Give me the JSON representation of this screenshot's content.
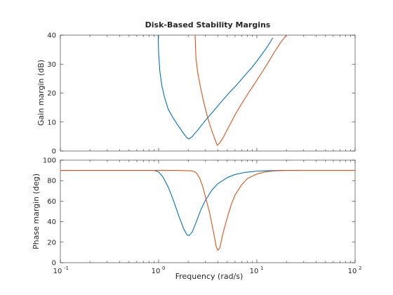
{
  "chart_data": [
    {
      "type": "line",
      "title": "Disk-Based Stability Margins",
      "xlabel": "",
      "ylabel": "Gain margin (dB)",
      "x_scale": "log",
      "xlim": [
        0.1,
        100
      ],
      "ylim": [
        0,
        40
      ],
      "yticks": [
        "0",
        "10",
        "20",
        "30",
        "40"
      ],
      "grid": false,
      "series": [
        {
          "color": "#0072BD",
          "x": [
            0.99,
            1.0,
            1.03,
            1.08,
            1.15,
            1.25,
            1.4,
            1.6,
            1.8,
            1.95,
            2.05,
            2.2,
            2.5,
            3.0,
            3.6,
            4.3,
            5.2,
            6.3,
            7.5,
            9.0,
            10.5,
            12.5,
            14.5
          ],
          "y": [
            40,
            34,
            27.5,
            22.5,
            18.5,
            14.5,
            11.5,
            8.5,
            6.0,
            4.5,
            4.2,
            5.0,
            7.2,
            10.6,
            13.7,
            16.8,
            20.0,
            23.0,
            26.0,
            29.0,
            32.0,
            35.5,
            39.0
          ]
        },
        {
          "color": "#D95319",
          "x": [
            2.35,
            2.4,
            2.5,
            2.65,
            2.85,
            3.1,
            3.4,
            3.7,
            3.95,
            4.2,
            4.6,
            5.2,
            6.0,
            7.0,
            8.2,
            9.6,
            11.2,
            13.0,
            15.0,
            17.5,
            20.0
          ],
          "y": [
            40,
            32,
            27.0,
            22.5,
            17.5,
            12.5,
            8.0,
            4.5,
            2.0,
            2.8,
            5.0,
            8.5,
            12.5,
            16.3,
            20.0,
            23.5,
            27.0,
            30.5,
            34.0,
            37.5,
            40.0
          ]
        }
      ]
    },
    {
      "type": "line",
      "title": "",
      "xlabel": "Frequency (rad/s)",
      "ylabel": "Phase margin (deg)",
      "x_scale": "log",
      "xlim": [
        0.1,
        100
      ],
      "ylim": [
        0,
        100
      ],
      "yticks": [
        "0",
        "20",
        "40",
        "60",
        "80",
        "100"
      ],
      "xticks": [
        {
          "base": "10",
          "exp": "-1"
        },
        {
          "base": "10",
          "exp": "0"
        },
        {
          "base": "10",
          "exp": "1"
        },
        {
          "base": "10",
          "exp": "2"
        }
      ],
      "grid": false,
      "series": [
        {
          "color": "#0072BD",
          "x": [
            0.1,
            0.9,
            1.0,
            1.1,
            1.25,
            1.4,
            1.6,
            1.8,
            1.95,
            2.05,
            2.2,
            2.4,
            2.7,
            3.0,
            3.5,
            4.0,
            5.0,
            6.0,
            7.5,
            10.0,
            14.0,
            20.0,
            28.0
          ],
          "y": [
            90,
            90,
            88.5,
            84,
            74,
            62,
            46,
            33,
            27,
            26.5,
            30,
            39,
            52,
            61,
            71,
            77,
            83,
            86,
            88,
            89.3,
            89.8,
            90,
            90
          ]
        },
        {
          "color": "#D95319",
          "x": [
            0.1,
            1.5,
            2.2,
            2.4,
            2.6,
            2.8,
            3.0,
            3.3,
            3.6,
            3.85,
            4.0,
            4.2,
            4.5,
            5.0,
            5.5,
            6.0,
            7.0,
            8.0,
            10.0,
            12.0,
            15.0,
            20.0,
            30.0,
            50.0,
            100.0
          ],
          "y": [
            90,
            90,
            89.5,
            88,
            83,
            75,
            64,
            49,
            31,
            16,
            12,
            14.5,
            28,
            44,
            57,
            66,
            76,
            82,
            86.5,
            88.5,
            89.5,
            90,
            90,
            90,
            90
          ]
        }
      ]
    }
  ]
}
